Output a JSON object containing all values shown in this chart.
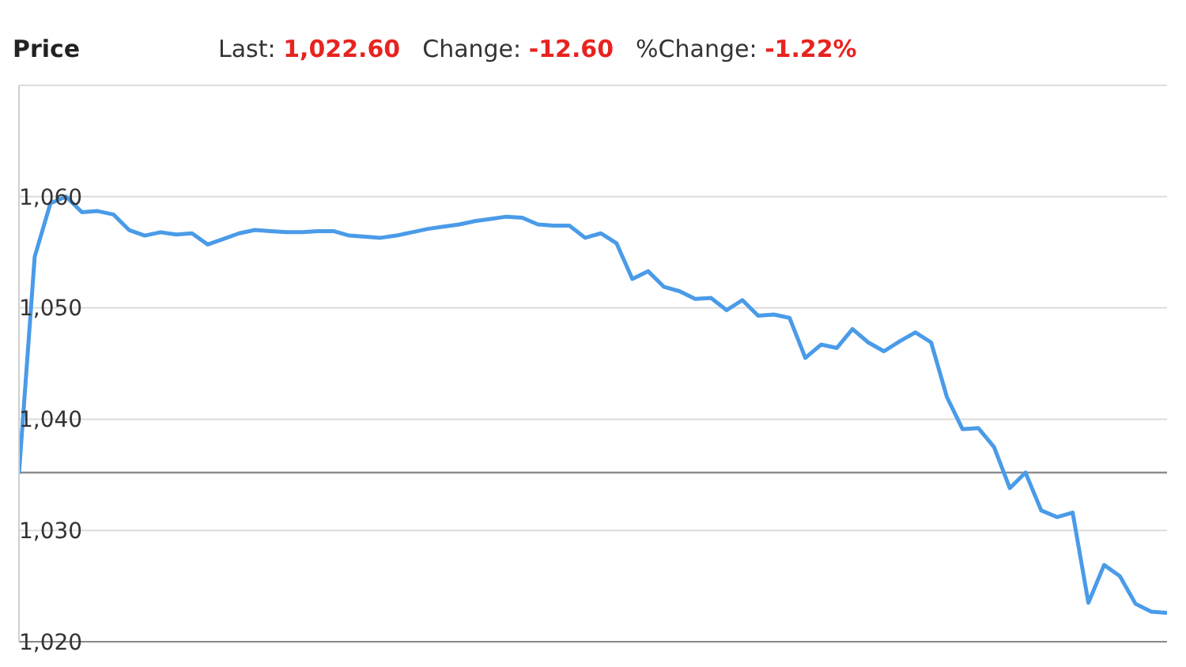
{
  "chart_data": {
    "type": "line",
    "title": "Price",
    "annotations": [
      "Last: 1,022.60",
      "Change: -12.60",
      "%Change: -1.22%"
    ],
    "categories": [
      null,
      null,
      null,
      null,
      null,
      null,
      null,
      null,
      null,
      null,
      null,
      null,
      null,
      null,
      null,
      null,
      null,
      null,
      null,
      null,
      null,
      null,
      null,
      null,
      null,
      null,
      null,
      null,
      null,
      null,
      null,
      null,
      null,
      null,
      null,
      null,
      null,
      null,
      null,
      null,
      null,
      null,
      null,
      null,
      null,
      null,
      null,
      null,
      null,
      null,
      null,
      null,
      null,
      null,
      null,
      null,
      null,
      null,
      null,
      null,
      null,
      null,
      null,
      null,
      null,
      null,
      null,
      null,
      null,
      null,
      null,
      null,
      null,
      null
    ],
    "series": [
      {
        "color": "#4a9be8",
        "values": [
          1035.1,
          1054.6,
          1059.4,
          1060,
          1058.6,
          1058.7,
          1058.4,
          1057,
          1056.5,
          1056.8,
          1056.6,
          1056.7,
          1055.7,
          1056.2,
          1056.7,
          1057,
          1056.9,
          1056.8,
          1056.8,
          1056.9,
          1056.9,
          1056.5,
          1056.4,
          1056.3,
          1056.5,
          1056.8,
          1057.1,
          1057.3,
          1057.5,
          1057.8,
          1058,
          1058.2,
          1058.1,
          1057.5,
          1057.4,
          1057.4,
          1056.3,
          1056.7,
          1055.8,
          1052.6,
          1053.3,
          1051.9,
          1051.5,
          1050.8,
          1050.9,
          1049.8,
          1050.7,
          1049.3,
          1049.4,
          1049.1,
          1045.5,
          1046.7,
          1046.4,
          1048.1,
          1046.9,
          1046.1,
          1047,
          1047.8,
          1046.9,
          1042,
          1039.1,
          1039.2,
          1037.5,
          1033.8,
          1035.2,
          1031.8,
          1031.2,
          1031.6,
          1023.5,
          1026.9,
          1025.9,
          1023.4,
          1022.7,
          1022.6
        ]
      }
    ],
    "ylim": [
      1020,
      1070
    ],
    "yticks": [
      {
        "value": 1020,
        "label": "1,020"
      },
      {
        "value": 1030,
        "label": "1,030"
      },
      {
        "value": 1040,
        "label": "1,040"
      },
      {
        "value": 1050,
        "label": "1,050"
      },
      {
        "value": 1060,
        "label": "1,060"
      }
    ],
    "tick_labels": "y",
    "ref_lines": [
      {
        "axis": "y",
        "value": 1035.2,
        "color": "#8c8c8c"
      }
    ],
    "grid": "y",
    "marker": "none",
    "line_style": "solid"
  }
}
